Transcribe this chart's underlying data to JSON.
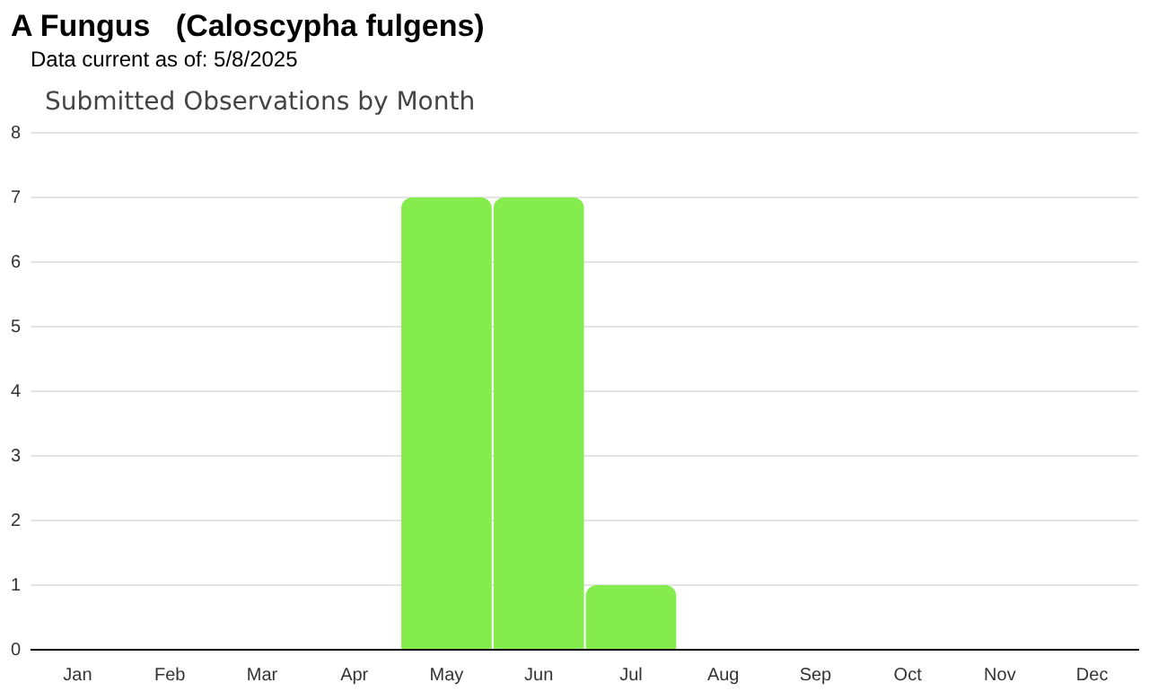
{
  "chart_data": {
    "type": "bar",
    "title": "A Fungus   (Caloscypha fulgens)",
    "subtitle": "Data current as of: 5/8/2025",
    "annotations": [
      "Submitted Observations by Month"
    ],
    "categories": [
      "Jan",
      "Feb",
      "Mar",
      "Apr",
      "May",
      "Jun",
      "Jul",
      "Aug",
      "Sep",
      "Oct",
      "Nov",
      "Dec"
    ],
    "values": [
      0,
      0,
      0,
      0,
      7,
      7,
      1,
      0,
      0,
      0,
      0,
      0
    ],
    "color": "#84ec4c",
    "ylim": [
      0,
      8
    ],
    "yticks": [
      0,
      1,
      2,
      3,
      4,
      5,
      6,
      7,
      8
    ],
    "grid": "y",
    "legend": false
  }
}
